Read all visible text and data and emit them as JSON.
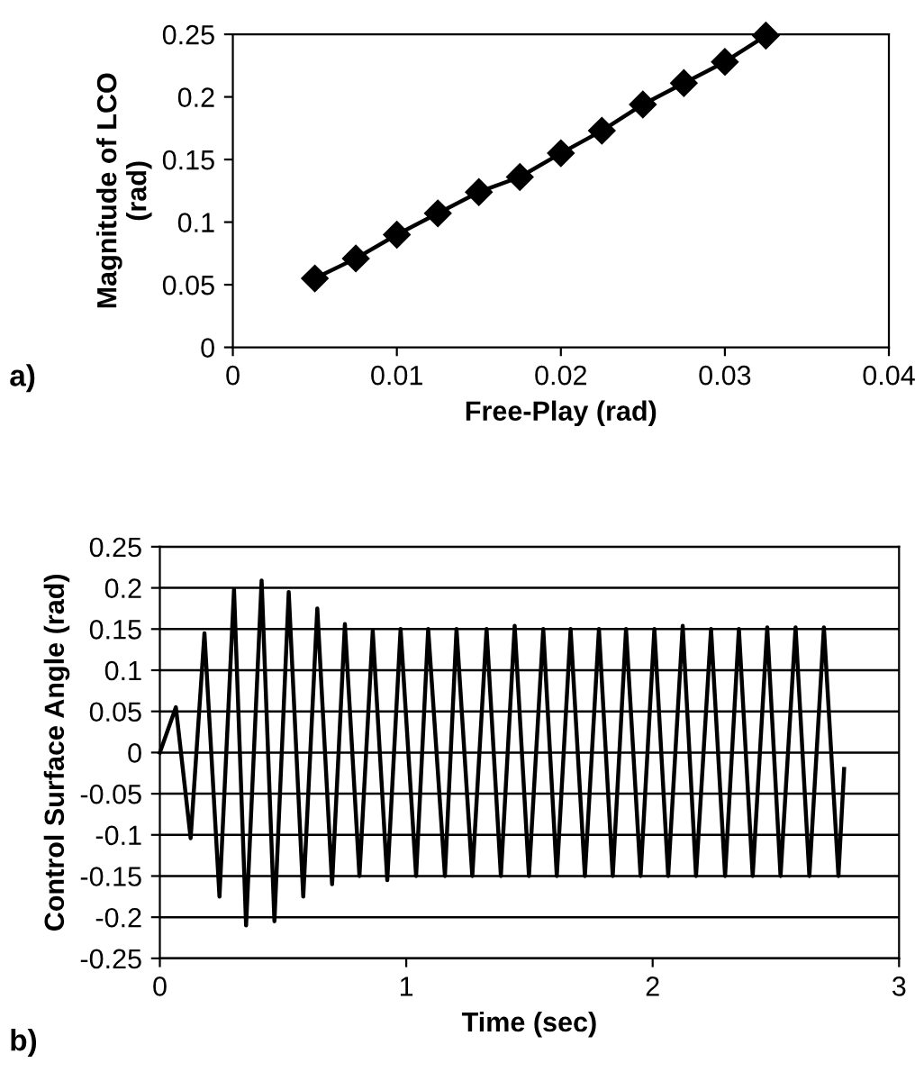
{
  "chart_data": [
    {
      "type": "line",
      "xlabel": "Free-Play (rad)",
      "ylabel": "Magnitude of LCO\n(rad)",
      "annotations": [
        "a)"
      ],
      "xlim": [
        0,
        0.04
      ],
      "xticks": [
        0,
        0.01,
        0.02,
        0.03,
        0.04
      ],
      "ylim": [
        0,
        0.25
      ],
      "yticks": [
        0,
        0.05,
        0.1,
        0.15,
        0.2,
        0.25
      ],
      "grid": false,
      "marker": "diamond",
      "line_style": "solid",
      "series": [
        {
          "color": "#000000",
          "x": [
            0.005,
            0.0075,
            0.01,
            0.0125,
            0.015,
            0.0175,
            0.02,
            0.0225,
            0.025,
            0.0275,
            0.03,
            0.0325
          ],
          "values": [
            0.055,
            0.071,
            0.09,
            0.107,
            0.124,
            0.136,
            0.155,
            0.173,
            0.194,
            0.211,
            0.228,
            0.249
          ]
        }
      ]
    },
    {
      "type": "line",
      "xlabel": "Time (sec)",
      "ylabel": "Control Surface Angle (rad)",
      "annotations": [
        "b)"
      ],
      "xlim": [
        0,
        3
      ],
      "xticks": [
        0,
        1,
        2,
        3
      ],
      "ylim": [
        -0.25,
        0.25
      ],
      "yticks": [
        -0.25,
        -0.2,
        -0.15,
        -0.1,
        -0.05,
        0,
        0.05,
        0.1,
        0.15,
        0.2,
        0.25
      ],
      "grid": "y",
      "line_style": "solid",
      "series": [
        {
          "color": "#000000",
          "x": [
            0,
            0.065,
            0.125,
            0.181,
            0.242,
            0.301,
            0.35,
            0.413,
            0.465,
            0.523,
            0.582,
            0.639,
            0.699,
            0.751,
            0.81,
            0.864,
            0.923,
            0.977,
            1.04,
            1.089,
            1.157,
            1.204,
            1.268,
            1.326,
            1.384,
            1.44,
            1.498,
            1.556,
            1.611,
            1.667,
            1.725,
            1.782,
            1.838,
            1.892,
            1.951,
            2.007,
            2.063,
            2.122,
            2.176,
            2.237,
            2.294,
            2.35,
            2.406,
            2.465,
            2.519,
            2.58,
            2.636,
            2.695,
            2.754,
            2.777
          ],
          "values": [
            0,
            0.055,
            -0.104,
            0.145,
            -0.175,
            0.198,
            -0.21,
            0.209,
            -0.205,
            0.195,
            -0.175,
            0.175,
            -0.16,
            0.156,
            -0.15,
            0.148,
            -0.155,
            0.15,
            -0.15,
            0.15,
            -0.15,
            0.15,
            -0.15,
            0.15,
            -0.15,
            0.154,
            -0.15,
            0.15,
            -0.15,
            0.15,
            -0.15,
            0.15,
            -0.15,
            0.15,
            -0.15,
            0.15,
            -0.15,
            0.154,
            -0.15,
            0.15,
            -0.15,
            0.15,
            -0.15,
            0.152,
            -0.15,
            0.152,
            -0.15,
            0.152,
            -0.15,
            -0.02
          ]
        }
      ]
    }
  ]
}
